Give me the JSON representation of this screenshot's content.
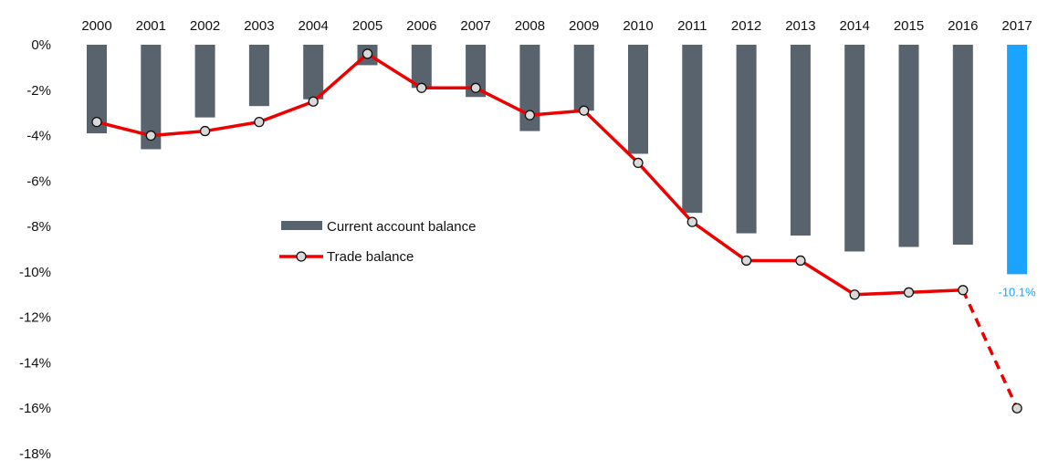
{
  "chart_data": {
    "type": "bar",
    "categories": [
      "2000",
      "2001",
      "2002",
      "2003",
      "2004",
      "2005",
      "2006",
      "2007",
      "2008",
      "2009",
      "2010",
      "2011",
      "2012",
      "2013",
      "2014",
      "2015",
      "2016",
      "2017"
    ],
    "series": [
      {
        "name": "Current account balance",
        "type": "bar",
        "values": [
          -3.9,
          -4.6,
          -3.2,
          -2.7,
          -2.4,
          -0.9,
          -1.9,
          -2.3,
          -3.8,
          -2.9,
          -4.8,
          -7.4,
          -8.3,
          -8.4,
          -9.1,
          -8.9,
          -8.8,
          -10.1
        ],
        "color": "#58636d",
        "highlight_color": "#1aa3ff",
        "highlight_category": "2017"
      },
      {
        "name": "Trade balance",
        "type": "line",
        "values": [
          -3.4,
          -4.0,
          -3.8,
          -3.4,
          -2.5,
          -0.4,
          -1.9,
          -1.9,
          -3.1,
          -2.9,
          -5.2,
          -7.8,
          -9.5,
          -9.5,
          -11.0,
          -10.9,
          -10.8,
          -16.0
        ],
        "color": "#ee0000",
        "projected_from": "2016",
        "marker": "circle"
      }
    ],
    "data_labels": [
      {
        "category": "2017",
        "text": "-10.1%",
        "color": "#1aa3ff"
      }
    ],
    "yticks": [
      "0%",
      "-2%",
      "-4%",
      "-6%",
      "-8%",
      "-10%",
      "-12%",
      "-14%",
      "-16%",
      "-18%"
    ],
    "ytick_values": [
      0,
      -2,
      -4,
      -6,
      -8,
      -10,
      -12,
      -14,
      -16,
      -18
    ],
    "ylim": [
      -18,
      0
    ],
    "x_axis_position": "top",
    "grid": false,
    "legend_position": "center-left",
    "title": "",
    "xlabel": "",
    "ylabel": ""
  }
}
